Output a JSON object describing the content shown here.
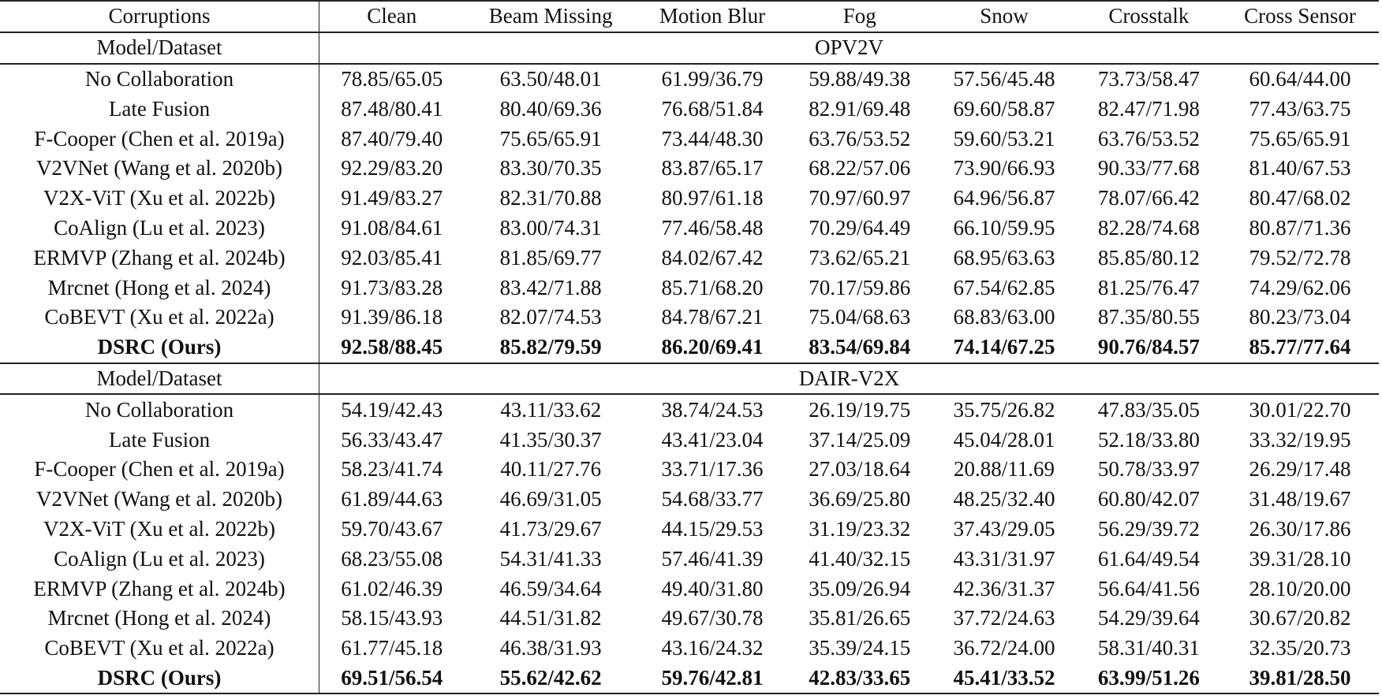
{
  "table": {
    "corner_label": "Corruptions",
    "columns": [
      "Clean",
      "Beam Missing",
      "Motion Blur",
      "Fog",
      "Snow",
      "Crosstalk",
      "Cross Sensor"
    ],
    "row_header_label": "Model/Dataset",
    "sections": [
      {
        "dataset": "OPV2V",
        "rows": [
          {
            "model": "No Collaboration",
            "values": [
              "78.85/65.05",
              "63.50/48.01",
              "61.99/36.79",
              "59.88/49.38",
              "57.56/45.48",
              "73.73/58.47",
              "60.64/44.00"
            ]
          },
          {
            "model": "Late Fusion",
            "values": [
              "87.48/80.41",
              "80.40/69.36",
              "76.68/51.84",
              "82.91/69.48",
              "69.60/58.87",
              "82.47/71.98",
              "77.43/63.75"
            ]
          },
          {
            "model": "F-Cooper (Chen et al. 2019a)",
            "values": [
              "87.40/79.40",
              "75.65/65.91",
              "73.44/48.30",
              "63.76/53.52",
              "59.60/53.21",
              "63.76/53.52",
              "75.65/65.91"
            ]
          },
          {
            "model": "V2VNet (Wang et al. 2020b)",
            "values": [
              "92.29/83.20",
              "83.30/70.35",
              "83.87/65.17",
              "68.22/57.06",
              "73.90/66.93",
              "90.33/77.68",
              "81.40/67.53"
            ]
          },
          {
            "model": "V2X-ViT (Xu et al. 2022b)",
            "values": [
              "91.49/83.27",
              "82.31/70.88",
              "80.97/61.18",
              "70.97/60.97",
              "64.96/56.87",
              "78.07/66.42",
              "80.47/68.02"
            ]
          },
          {
            "model": "CoAlign (Lu et al. 2023)",
            "values": [
              "91.08/84.61",
              "83.00/74.31",
              "77.46/58.48",
              "70.29/64.49",
              "66.10/59.95",
              "82.28/74.68",
              "80.87/71.36"
            ]
          },
          {
            "model": "ERMVP (Zhang et al. 2024b)",
            "values": [
              "92.03/85.41",
              "81.85/69.77",
              "84.02/67.42",
              "73.62/65.21",
              "68.95/63.63",
              "85.85/80.12",
              "79.52/72.78"
            ]
          },
          {
            "model": "Mrcnet (Hong et al. 2024)",
            "values": [
              "91.73/83.28",
              "83.42/71.88",
              "85.71/68.20",
              "70.17/59.86",
              "67.54/62.85",
              "81.25/76.47",
              "74.29/62.06"
            ]
          },
          {
            "model": "CoBEVT (Xu et al. 2022a)",
            "values": [
              "91.39/86.18",
              "82.07/74.53",
              "84.78/67.21",
              "75.04/68.63",
              "68.83/63.00",
              "87.35/80.55",
              "80.23/73.04"
            ]
          },
          {
            "model": "DSRC (Ours)",
            "values": [
              "92.58/88.45",
              "85.82/79.59",
              "86.20/69.41",
              "83.54/69.84",
              "74.14/67.25",
              "90.76/84.57",
              "85.77/77.64"
            ],
            "bold": true
          }
        ]
      },
      {
        "dataset": "DAIR-V2X",
        "rows": [
          {
            "model": "No Collaboration",
            "values": [
              "54.19/42.43",
              "43.11/33.62",
              "38.74/24.53",
              "26.19/19.75",
              "35.75/26.82",
              "47.83/35.05",
              "30.01/22.70"
            ]
          },
          {
            "model": "Late Fusion",
            "values": [
              "56.33/43.47",
              "41.35/30.37",
              "43.41/23.04",
              "37.14/25.09",
              "45.04/28.01",
              "52.18/33.80",
              "33.32/19.95"
            ]
          },
          {
            "model": "F-Cooper (Chen et al. 2019a)",
            "values": [
              "58.23/41.74",
              "40.11/27.76",
              "33.71/17.36",
              "27.03/18.64",
              "20.88/11.69",
              "50.78/33.97",
              "26.29/17.48"
            ]
          },
          {
            "model": "V2VNet (Wang et al. 2020b)",
            "values": [
              "61.89/44.63",
              "46.69/31.05",
              "54.68/33.77",
              "36.69/25.80",
              "48.25/32.40",
              "60.80/42.07",
              "31.48/19.67"
            ]
          },
          {
            "model": "V2X-ViT (Xu et al. 2022b)",
            "values": [
              "59.70/43.67",
              "41.73/29.67",
              "44.15/29.53",
              "31.19/23.32",
              "37.43/29.05",
              "56.29/39.72",
              "26.30/17.86"
            ]
          },
          {
            "model": "CoAlign (Lu et al. 2023)",
            "values": [
              "68.23/55.08",
              "54.31/41.33",
              "57.46/41.39",
              "41.40/32.15",
              "43.31/31.97",
              "61.64/49.54",
              "39.31/28.10"
            ]
          },
          {
            "model": "ERMVP (Zhang et al. 2024b)",
            "values": [
              "61.02/46.39",
              "46.59/34.64",
              "49.40/31.80",
              "35.09/26.94",
              "42.36/31.37",
              "56.64/41.56",
              "28.10/20.00"
            ]
          },
          {
            "model": "Mrcnet (Hong et al. 2024)",
            "values": [
              "58.15/43.93",
              "44.51/31.82",
              "49.67/30.78",
              "35.81/26.65",
              "37.72/24.63",
              "54.29/39.64",
              "30.67/20.82"
            ]
          },
          {
            "model": "CoBEVT (Xu et al. 2022a)",
            "values": [
              "61.77/45.18",
              "46.38/31.93",
              "43.16/24.32",
              "35.39/24.15",
              "36.72/24.00",
              "58.31/40.31",
              "32.35/20.73"
            ]
          },
          {
            "model": "DSRC (Ours)",
            "values": [
              "69.51/56.54",
              "55.62/42.62",
              "59.76/42.81",
              "42.83/33.65",
              "45.41/33.52",
              "63.99/51.26",
              "39.81/28.50"
            ],
            "bold": true
          }
        ]
      }
    ]
  }
}
